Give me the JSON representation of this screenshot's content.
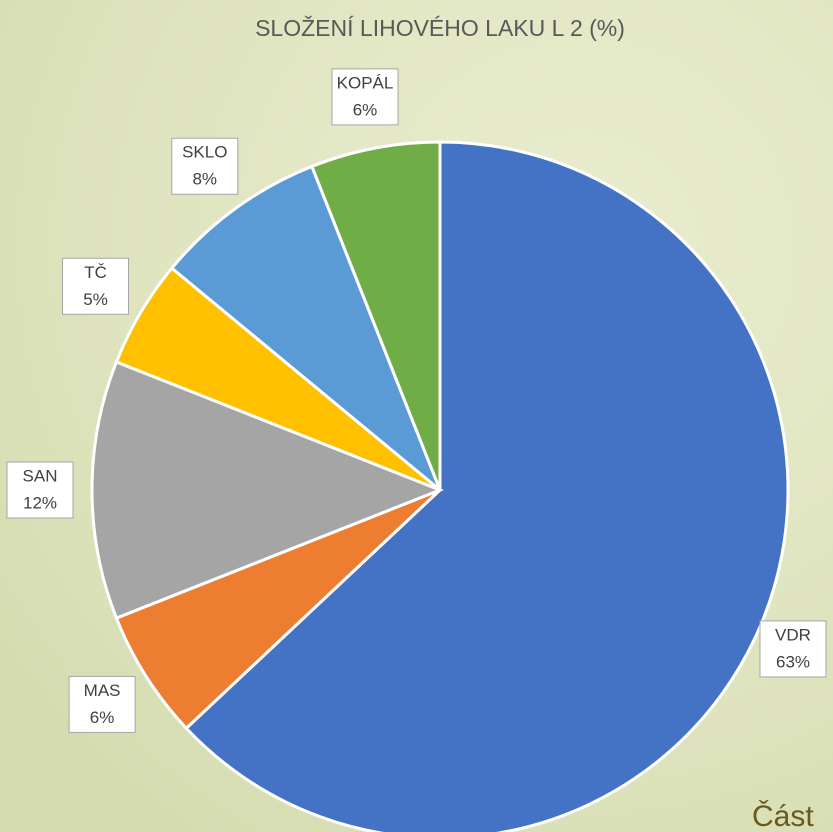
{
  "chart_data": {
    "type": "pie",
    "title": "SLOŽENÍ LIHOVÉHO LAKU L 2 (%)",
    "categories": [
      "VDR",
      "MAS",
      "SAN",
      "TČ",
      "SKLO",
      "KOPÁL"
    ],
    "values": [
      63,
      6,
      12,
      5,
      8,
      6
    ],
    "value_labels": [
      "63%",
      "6%",
      "12%",
      "5%",
      "8%",
      "6%"
    ],
    "colors": [
      "#4472c4",
      "#ed7d31",
      "#a5a5a5",
      "#ffc000",
      "#5b9bd5",
      "#70ad47"
    ]
  },
  "footer_text": "Část"
}
